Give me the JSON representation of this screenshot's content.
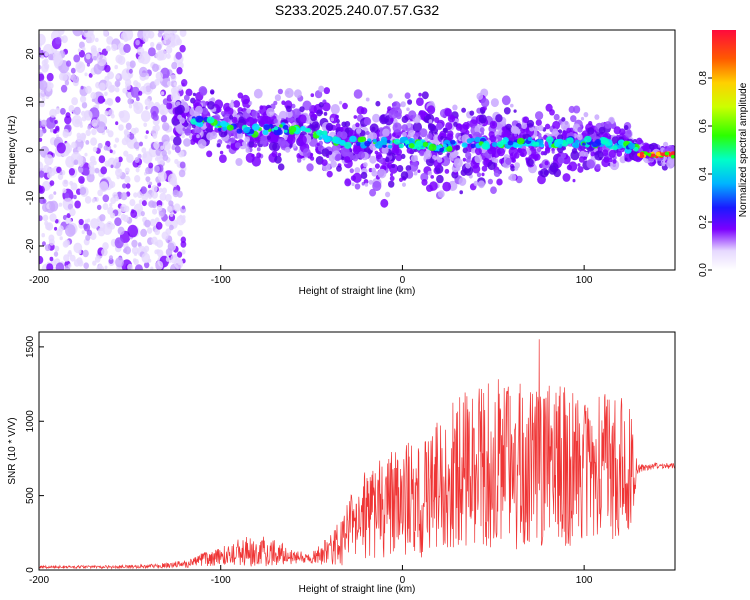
{
  "title": "S233.2025.240.07.57.G32",
  "chart_data": [
    {
      "type": "heatmap",
      "panel": "spectrogram",
      "xlabel": "Height of straight line (km)",
      "ylabel": "Frequency (Hz)",
      "xlim": [
        -200,
        150
      ],
      "ylim": [
        -25,
        25
      ],
      "xticks": [
        -200,
        -100,
        0,
        100
      ],
      "yticks": [
        -20,
        -10,
        0,
        10,
        20
      ],
      "ridge_x": [
        -120,
        -110,
        -100,
        -90,
        -80,
        -70,
        -60,
        -50,
        -40,
        -30,
        -20,
        -10,
        0,
        10,
        20,
        30,
        40,
        50,
        60,
        70,
        80,
        90,
        100,
        110,
        120,
        130,
        140,
        150
      ],
      "ridge_freq": [
        7,
        6,
        5,
        4,
        4,
        4.5,
        4.5,
        3.5,
        2.5,
        1.5,
        1.5,
        1.5,
        1.5,
        1,
        0.5,
        1,
        1.5,
        1.5,
        1.5,
        1.5,
        1.5,
        1.5,
        1.5,
        1.5,
        1,
        0,
        -1,
        -1
      ],
      "colorbar": {
        "label": "Normalized spectral amplitude",
        "range": [
          0,
          1
        ],
        "ticks": [
          "0.0",
          "0.2",
          "0.4",
          "0.6",
          "0.8"
        ]
      }
    },
    {
      "type": "line",
      "panel": "snr",
      "xlabel": "Height of straight line (km)",
      "ylabel": "SNR (10 * V/V)",
      "xlim": [
        -200,
        150
      ],
      "ylim": [
        0,
        1600
      ],
      "xticks": [
        -200,
        -100,
        0,
        100
      ],
      "yticks": [
        0,
        500,
        1000,
        1500
      ],
      "color": "#ef3535",
      "envelope_x": [
        -200,
        -180,
        -160,
        -140,
        -120,
        -110,
        -100,
        -90,
        -80,
        -70,
        -60,
        -50,
        -40,
        -30,
        -20,
        -10,
        0,
        10,
        20,
        30,
        40,
        50,
        60,
        70,
        80,
        90,
        100,
        110,
        120,
        125,
        130,
        140,
        150
      ],
      "envelope_mean": [
        20,
        20,
        20,
        25,
        40,
        70,
        90,
        120,
        130,
        120,
        90,
        80,
        130,
        250,
        380,
        420,
        480,
        450,
        600,
        650,
        700,
        700,
        700,
        680,
        720,
        700,
        680,
        680,
        700,
        700,
        680,
        700,
        700
      ],
      "envelope_amp": [
        10,
        10,
        10,
        12,
        25,
        45,
        60,
        90,
        110,
        90,
        50,
        40,
        100,
        220,
        300,
        350,
        400,
        400,
        450,
        500,
        550,
        600,
        600,
        550,
        550,
        550,
        500,
        500,
        500,
        450,
        30,
        20,
        20
      ]
    }
  ]
}
